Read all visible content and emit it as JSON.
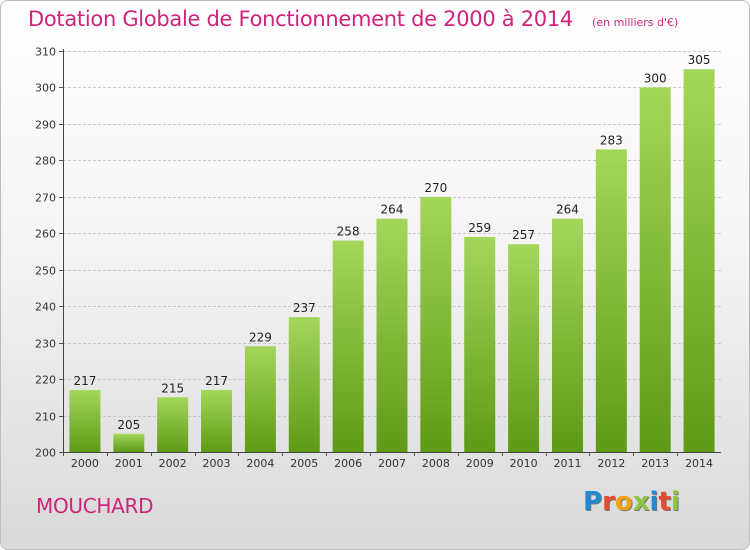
{
  "header": {
    "title": "Dotation Globale de Fonctionnement de 2000 à 2014",
    "subtitle": "(en milliers d'€)"
  },
  "footer": {
    "town": "MOUCHARD",
    "logo": "Proxiti",
    "logo_colors": [
      "#1f8ad0",
      "#e84a2e",
      "#f2a20f",
      "#8dc63f",
      "#1f8ad0",
      "#e84a2e",
      "#8dc63f"
    ]
  },
  "chart_data": {
    "type": "bar",
    "categories": [
      "2000",
      "2001",
      "2002",
      "2003",
      "2004",
      "2005",
      "2006",
      "2007",
      "2008",
      "2009",
      "2010",
      "2011",
      "2012",
      "2013",
      "2014"
    ],
    "values": [
      217,
      205,
      215,
      217,
      229,
      237,
      258,
      264,
      270,
      259,
      257,
      264,
      283,
      300,
      305
    ],
    "ylim": [
      200,
      310
    ],
    "yticks": [
      200,
      210,
      220,
      230,
      240,
      250,
      260,
      270,
      280,
      290,
      300,
      310
    ],
    "grid": true,
    "bar_color_top": "#a4d65a",
    "bar_color_bottom": "#5e9a16"
  }
}
